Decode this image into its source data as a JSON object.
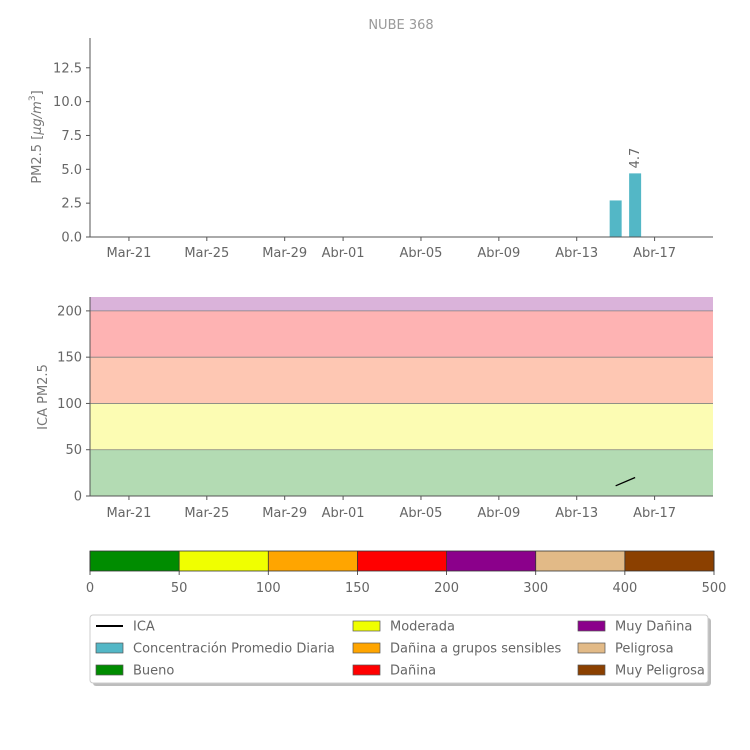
{
  "chart_data": [
    {
      "id": "pm25-daily",
      "type": "bar",
      "title": "NUBE 368",
      "ylabel_main": "PM2.5 [",
      "ylabel_unit": "μg/m",
      "ylabel_exp": "3",
      "ylabel_close": "]",
      "color": "#53b7c6",
      "ylim": [
        0,
        14.7
      ],
      "yticks": [
        "0.0",
        "2.5",
        "5.0",
        "7.5",
        "10.0",
        "12.5"
      ],
      "xlim": [
        "2025-03-19",
        "2025-04-20"
      ],
      "xticks": [
        {
          "date": "2025-03-21",
          "label": "Mar-21"
        },
        {
          "date": "2025-03-25",
          "label": "Mar-25"
        },
        {
          "date": "2025-03-29",
          "label": "Mar-29"
        },
        {
          "date": "2025-04-01",
          "label": "Abr-01"
        },
        {
          "date": "2025-04-05",
          "label": "Abr-05"
        },
        {
          "date": "2025-04-09",
          "label": "Abr-09"
        },
        {
          "date": "2025-04-13",
          "label": "Abr-13"
        },
        {
          "date": "2025-04-17",
          "label": "Abr-17"
        }
      ],
      "bars": [
        {
          "date": "2025-04-15",
          "value": 2.7,
          "label": ""
        },
        {
          "date": "2025-04-16",
          "value": 4.7,
          "label": "4.7"
        }
      ]
    },
    {
      "id": "ica-line",
      "type": "line",
      "ylabel": "ICA PM2.5",
      "ylim": [
        0,
        215
      ],
      "yticks": [
        "0",
        "50",
        "100",
        "150",
        "200"
      ],
      "xlim": [
        "2025-03-19",
        "2025-04-20"
      ],
      "xticks": [
        {
          "date": "2025-03-21",
          "label": "Mar-21"
        },
        {
          "date": "2025-03-25",
          "label": "Mar-25"
        },
        {
          "date": "2025-03-29",
          "label": "Mar-29"
        },
        {
          "date": "2025-04-01",
          "label": "Abr-01"
        },
        {
          "date": "2025-04-05",
          "label": "Abr-05"
        },
        {
          "date": "2025-04-09",
          "label": "Abr-09"
        },
        {
          "date": "2025-04-13",
          "label": "Abr-13"
        },
        {
          "date": "2025-04-17",
          "label": "Abr-17"
        }
      ],
      "bands": [
        {
          "from": 0,
          "to": 50,
          "color": "#b3dbb3"
        },
        {
          "from": 50,
          "to": 100,
          "color": "#fcfcb3"
        },
        {
          "from": 100,
          "to": 150,
          "color": "#fec7b3"
        },
        {
          "from": 150,
          "to": 200,
          "color": "#feb3b3"
        },
        {
          "from": 200,
          "to": 215,
          "color": "#dab3da"
        }
      ],
      "series": [
        {
          "points": [
            {
              "date": "2025-04-15",
              "value": 11
            },
            {
              "date": "2025-04-16",
              "value": 20
            }
          ],
          "color": "#000000"
        }
      ]
    },
    {
      "id": "ica-scale",
      "type": "colorbar",
      "ticks": [
        "0",
        "50",
        "100",
        "150",
        "200",
        "300",
        "400",
        "500"
      ],
      "segments": [
        {
          "color": "#008c00"
        },
        {
          "color": "#f0ff00"
        },
        {
          "color": "#ffa500"
        },
        {
          "color": "#ff0000"
        },
        {
          "color": "#8b008b"
        },
        {
          "color": "#e2ba87"
        },
        {
          "color": "#8b4000"
        }
      ]
    }
  ],
  "legend": {
    "items": [
      {
        "label": "ICA",
        "kind": "line",
        "color": "#000000"
      },
      {
        "label": "Concentración Promedio Diaria",
        "kind": "patch",
        "color": "#53b7c6"
      },
      {
        "label": "Bueno",
        "kind": "patch",
        "color": "#008c00"
      },
      {
        "label": "Moderada",
        "kind": "patch",
        "color": "#f0ff00"
      },
      {
        "label": "Dañina a grupos sensibles",
        "kind": "patch",
        "color": "#ffa500"
      },
      {
        "label": "Dañina",
        "kind": "patch",
        "color": "#ff0000"
      },
      {
        "label": "Muy Dañina",
        "kind": "patch",
        "color": "#8b008b"
      },
      {
        "label": "Peligrosa",
        "kind": "patch",
        "color": "#e2ba87"
      },
      {
        "label": "Muy Peligrosa",
        "kind": "patch",
        "color": "#8b4000"
      }
    ]
  }
}
